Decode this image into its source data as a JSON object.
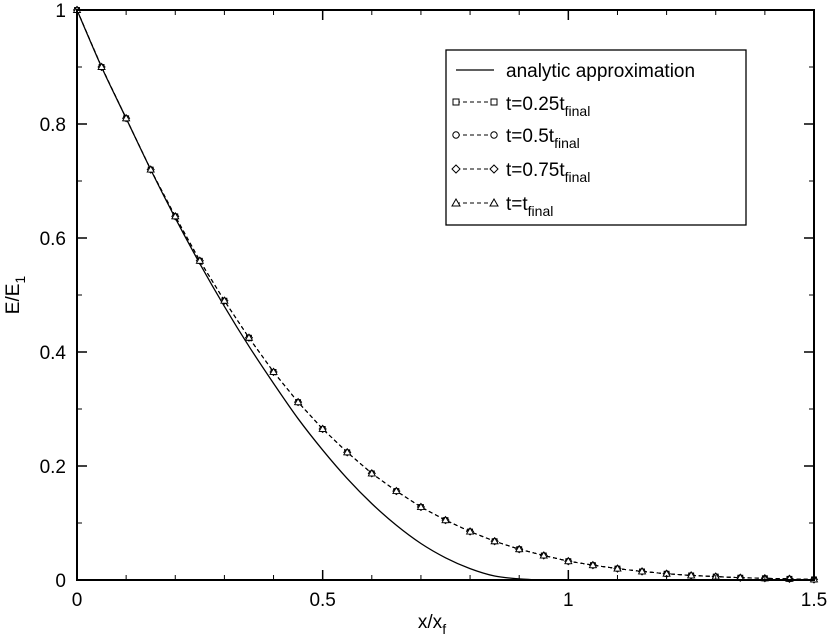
{
  "chart_data": {
    "type": "line",
    "xlabel": {
      "main": "x/x",
      "sub": "f"
    },
    "ylabel": {
      "main": "E/E",
      "sub": "1"
    },
    "xlim": [
      0,
      1.5
    ],
    "ylim": [
      0,
      1
    ],
    "xticks": [
      0,
      0.5,
      1,
      1.5
    ],
    "xtick_labels": [
      "0",
      "0.5",
      "1",
      "1.5"
    ],
    "yticks": [
      0,
      0.2,
      0.4,
      0.6,
      0.8,
      1
    ],
    "ytick_labels": [
      "0",
      "0.2",
      "0.4",
      "0.6",
      "0.8",
      "1"
    ],
    "grid": false,
    "legend_position": "top-right",
    "series": [
      {
        "name": "analytic approximation",
        "style": "solid",
        "marker": "none",
        "color": "#000000",
        "x": [
          0,
          0.05,
          0.1,
          0.15,
          0.2,
          0.25,
          0.3,
          0.35,
          0.4,
          0.45,
          0.5,
          0.55,
          0.6,
          0.65,
          0.7,
          0.75,
          0.8,
          0.85,
          0.9,
          0.95,
          0.97
        ],
        "y": [
          1,
          0.9,
          0.81,
          0.72,
          0.635,
          0.555,
          0.48,
          0.41,
          0.345,
          0.283,
          0.228,
          0.178,
          0.134,
          0.096,
          0.064,
          0.039,
          0.02,
          0.007,
          0.002,
          0.0,
          0.0
        ]
      },
      {
        "name_main": "t=0.25t",
        "name_sub": "final",
        "style": "dashed",
        "marker": "square",
        "color": "#000000",
        "x": [
          0,
          0.05,
          0.1,
          0.15,
          0.2,
          0.25,
          0.3,
          0.35,
          0.4,
          0.45,
          0.5,
          0.55,
          0.6,
          0.65,
          0.7,
          0.75,
          0.8,
          0.85,
          0.9,
          0.95,
          1.0,
          1.05,
          1.1,
          1.15,
          1.2,
          1.25,
          1.3,
          1.35,
          1.4,
          1.45,
          1.5
        ],
        "y": [
          1,
          0.9,
          0.81,
          0.72,
          0.638,
          0.56,
          0.49,
          0.425,
          0.365,
          0.312,
          0.265,
          0.224,
          0.187,
          0.156,
          0.128,
          0.105,
          0.085,
          0.068,
          0.054,
          0.043,
          0.033,
          0.026,
          0.02,
          0.015,
          0.011,
          0.008,
          0.006,
          0.004,
          0.003,
          0.002,
          0.001
        ]
      },
      {
        "name_main": "t=0.5t",
        "name_sub": "final",
        "style": "dashed",
        "marker": "circle",
        "color": "#000000",
        "x": [
          0,
          0.05,
          0.1,
          0.15,
          0.2,
          0.25,
          0.3,
          0.35,
          0.4,
          0.45,
          0.5,
          0.55,
          0.6,
          0.65,
          0.7,
          0.75,
          0.8,
          0.85,
          0.9,
          0.95,
          1.0,
          1.05,
          1.1,
          1.15,
          1.2,
          1.25,
          1.3,
          1.35,
          1.4,
          1.45,
          1.5
        ],
        "y": [
          1,
          0.9,
          0.81,
          0.72,
          0.638,
          0.56,
          0.49,
          0.425,
          0.365,
          0.312,
          0.265,
          0.224,
          0.187,
          0.156,
          0.128,
          0.105,
          0.085,
          0.068,
          0.054,
          0.043,
          0.033,
          0.026,
          0.02,
          0.015,
          0.011,
          0.008,
          0.006,
          0.004,
          0.003,
          0.002,
          0.001
        ]
      },
      {
        "name_main": "t=0.75t",
        "name_sub": "final",
        "style": "dashed",
        "marker": "diamond",
        "color": "#000000",
        "x": [
          0,
          0.05,
          0.1,
          0.15,
          0.2,
          0.25,
          0.3,
          0.35,
          0.4,
          0.45,
          0.5,
          0.55,
          0.6,
          0.65,
          0.7,
          0.75,
          0.8,
          0.85,
          0.9,
          0.95,
          1.0,
          1.05,
          1.1,
          1.15,
          1.2,
          1.25,
          1.3,
          1.35,
          1.4,
          1.45,
          1.5
        ],
        "y": [
          1,
          0.9,
          0.81,
          0.72,
          0.638,
          0.56,
          0.49,
          0.425,
          0.365,
          0.312,
          0.265,
          0.224,
          0.187,
          0.156,
          0.128,
          0.105,
          0.085,
          0.068,
          0.054,
          0.043,
          0.033,
          0.026,
          0.02,
          0.015,
          0.011,
          0.008,
          0.006,
          0.004,
          0.003,
          0.002,
          0.001
        ]
      },
      {
        "name_main": "t=t",
        "name_sub": "final",
        "style": "dashed",
        "marker": "triangle",
        "color": "#000000",
        "x": [
          0,
          0.05,
          0.1,
          0.15,
          0.2,
          0.25,
          0.3,
          0.35,
          0.4,
          0.45,
          0.5,
          0.55,
          0.6,
          0.65,
          0.7,
          0.75,
          0.8,
          0.85,
          0.9,
          0.95,
          1.0,
          1.05,
          1.1,
          1.15,
          1.2,
          1.25,
          1.3,
          1.35,
          1.4,
          1.45,
          1.5
        ],
        "y": [
          1,
          0.9,
          0.81,
          0.72,
          0.638,
          0.56,
          0.49,
          0.425,
          0.365,
          0.312,
          0.265,
          0.224,
          0.187,
          0.156,
          0.128,
          0.105,
          0.085,
          0.068,
          0.054,
          0.043,
          0.033,
          0.026,
          0.02,
          0.015,
          0.011,
          0.008,
          0.006,
          0.004,
          0.003,
          0.002,
          0.001
        ]
      }
    ]
  }
}
